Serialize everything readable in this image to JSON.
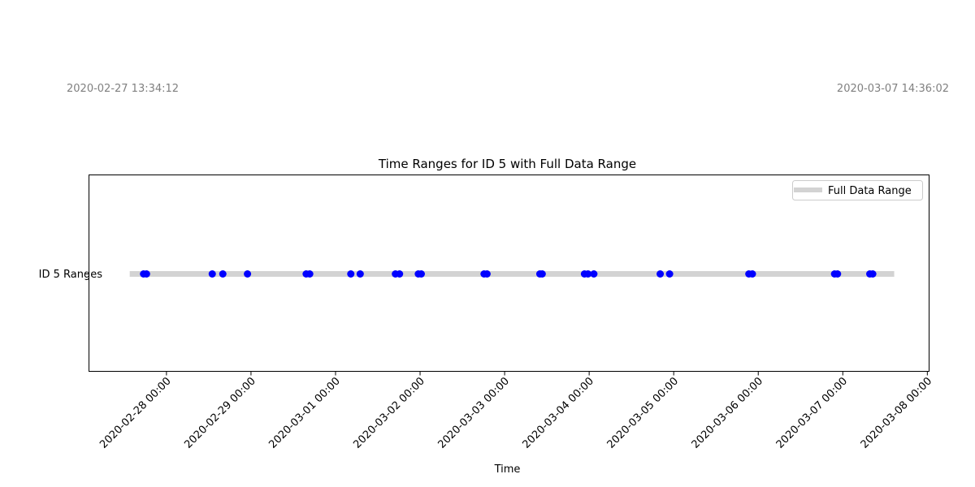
{
  "annotations": {
    "start_label": "2020-02-27 13:34:12",
    "end_label": "2020-03-07 14:36:02"
  },
  "chart_data": {
    "type": "scatter",
    "title": "Time Ranges for ID 5 with Full Data Range",
    "xlabel": "Time",
    "ylabel": "",
    "y_category": "ID 5 Ranges",
    "xlim": [
      "2020-02-27 02:00:00",
      "2020-03-08 00:30:00"
    ],
    "x_ticks": [
      "2020-02-28 00:00",
      "2020-02-29 00:00",
      "2020-03-01 00:00",
      "2020-03-02 00:00",
      "2020-03-03 00:00",
      "2020-03-04 00:00",
      "2020-03-05 00:00",
      "2020-03-06 00:00",
      "2020-03-07 00:00",
      "2020-03-08 00:00"
    ],
    "full_range": {
      "name": "Full Data Range",
      "start": "2020-02-27 13:34:12",
      "end": "2020-03-07 14:36:02",
      "color": "#d3d3d3"
    },
    "points_color": "#0000ff",
    "points": [
      "2020-02-27 17:30",
      "2020-02-27 18:20",
      "2020-02-28 13:00",
      "2020-02-28 16:00",
      "2020-02-28 23:00",
      "2020-02-29 15:40",
      "2020-02-29 16:40",
      "2020-03-01 04:20",
      "2020-03-01 07:00",
      "2020-03-01 17:00",
      "2020-03-01 18:10",
      "2020-03-01 23:30",
      "2020-03-02 00:20",
      "2020-03-02 18:10",
      "2020-03-02 19:00",
      "2020-03-03 10:00",
      "2020-03-03 10:40",
      "2020-03-03 22:40",
      "2020-03-03 23:40",
      "2020-03-04 01:20",
      "2020-03-04 20:10",
      "2020-03-04 22:50",
      "2020-03-05 21:20",
      "2020-03-05 22:20",
      "2020-03-06 21:40",
      "2020-03-06 22:30",
      "2020-03-07 07:40",
      "2020-03-07 08:30"
    ],
    "legend": {
      "entries": [
        "Full Data Range"
      ],
      "placement": "upper right"
    },
    "grid": false
  }
}
